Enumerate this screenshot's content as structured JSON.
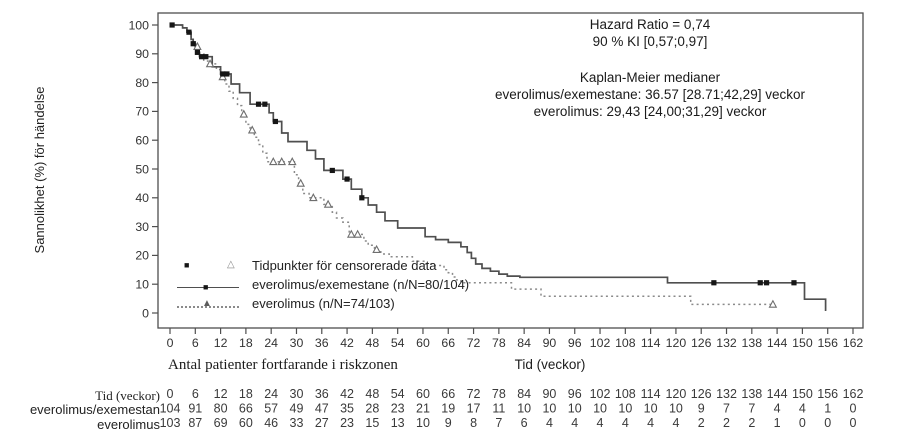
{
  "annotation": {
    "hazard_ratio": "Hazard Ratio = 0,74",
    "confidence_interval": "90 % KI [0,57;0,97]",
    "km_header": "Kaplan-Meier medianer",
    "km_median_combo": "everolimus/exemestane: 36.57 [28.71;42,29] veckor",
    "km_median_mono": "everolimus: 29,43 [24,00;31,29] veckor"
  },
  "axes": {
    "ylabel": "Sannolikhet (%) för händelse",
    "xlabel": "Tid (veckor)"
  },
  "legend": {
    "censored_label": "Tidpunkter för censorerade data",
    "series1_label": "everolimus/exemestane (n/N=80/104)",
    "series2_label": "everolimus (n/N=74/103)"
  },
  "risk_table": {
    "title": "Antal patienter fortfarande i riskzonen",
    "rows": [
      {
        "label": "Tid (veckor)",
        "values": [
          "0",
          "6",
          "12",
          "18",
          "24",
          "30",
          "36",
          "42",
          "48",
          "54",
          "60",
          "66",
          "72",
          "78",
          "84",
          "90",
          "96",
          "102",
          "108",
          "114",
          "120",
          "126",
          "132",
          "138",
          "144",
          "150",
          "156",
          "162"
        ]
      },
      {
        "label": "everolimus/exemestan",
        "values": [
          "104",
          "91",
          "80",
          "66",
          "57",
          "49",
          "47",
          "35",
          "28",
          "23",
          "21",
          "19",
          "17",
          "11",
          "10",
          "10",
          "10",
          "10",
          "10",
          "10",
          "10",
          "9",
          "7",
          "7",
          "4",
          "4",
          "1",
          "0"
        ]
      },
      {
        "label": "everolimus",
        "values": [
          "103",
          "87",
          "69",
          "60",
          "46",
          "33",
          "27",
          "23",
          "15",
          "13",
          "10",
          "9",
          "8",
          "7",
          "6",
          "4",
          "4",
          "4",
          "4",
          "4",
          "4",
          "2",
          "2",
          "2",
          "1",
          "0",
          "0",
          "0"
        ]
      }
    ]
  },
  "chart_data": {
    "type": "line",
    "subtype": "kaplan-meier-step",
    "title": "",
    "xlabel": "Tid (veckor)",
    "ylabel": "Sannolikhet (%) för händelse",
    "xlim": [
      0,
      162
    ],
    "ylim": [
      0,
      100
    ],
    "xticks": [
      0,
      6,
      12,
      18,
      24,
      30,
      36,
      42,
      48,
      54,
      60,
      66,
      72,
      78,
      84,
      90,
      96,
      102,
      108,
      114,
      120,
      126,
      132,
      138,
      144,
      150,
      156,
      162
    ],
    "yticks": [
      0,
      10,
      20,
      30,
      40,
      50,
      60,
      70,
      80,
      90,
      100
    ],
    "grid": false,
    "legend_position": "lower-left",
    "series": [
      {
        "name": "everolimus/exemestane (n/N=80/104)",
        "style": "solid",
        "marker": "filled-square",
        "median_weeks": 36.57,
        "steps": [
          [
            0,
            100
          ],
          [
            3,
            99
          ],
          [
            4,
            97.5
          ],
          [
            5,
            95
          ],
          [
            5.5,
            93.5
          ],
          [
            6,
            92
          ],
          [
            6.5,
            90.5
          ],
          [
            7,
            89
          ],
          [
            10,
            85.5
          ],
          [
            12,
            83
          ],
          [
            14.5,
            79.5
          ],
          [
            16.5,
            76.5
          ],
          [
            19,
            72.5
          ],
          [
            23.5,
            69.5
          ],
          [
            24.5,
            66.5
          ],
          [
            26.5,
            62.5
          ],
          [
            28,
            59.5
          ],
          [
            32.5,
            56.5
          ],
          [
            34.5,
            53.5
          ],
          [
            36.5,
            49.5
          ],
          [
            41,
            46.5
          ],
          [
            43,
            43
          ],
          [
            45.5,
            40
          ],
          [
            47,
            37.5
          ],
          [
            49,
            35
          ],
          [
            51,
            32
          ],
          [
            54,
            29.5
          ],
          [
            60.5,
            26.5
          ],
          [
            63,
            25.5
          ],
          [
            66,
            24.5
          ],
          [
            69,
            23
          ],
          [
            70.5,
            21
          ],
          [
            71.5,
            19
          ],
          [
            72.5,
            17
          ],
          [
            74,
            15.5
          ],
          [
            76,
            14.5
          ],
          [
            78,
            13.5
          ],
          [
            80,
            12.8
          ],
          [
            83,
            12.4
          ],
          [
            118,
            10.5
          ],
          [
            150.5,
            4.8
          ],
          [
            155.5,
            1
          ]
        ],
        "end_week": 155.7,
        "censor_marks": [
          [
            0.5,
            100
          ],
          [
            4.5,
            97.5
          ],
          [
            5.5,
            93.5
          ],
          [
            6.5,
            90.5
          ],
          [
            7.5,
            89
          ],
          [
            8.5,
            89
          ],
          [
            12.5,
            83
          ],
          [
            13.5,
            83
          ],
          [
            21,
            72.5
          ],
          [
            22.5,
            72.5
          ],
          [
            25,
            66.5
          ],
          [
            38.5,
            49.5
          ],
          [
            42,
            46.5
          ],
          [
            45.5,
            40
          ],
          [
            129,
            10.5
          ],
          [
            140,
            10.5
          ],
          [
            141.5,
            10.5
          ],
          [
            148,
            10.5
          ]
        ]
      },
      {
        "name": "everolimus (n/N=74/103)",
        "style": "dotted",
        "marker": "open-triangle",
        "median_weeks": 29.43,
        "steps": [
          [
            0,
            100
          ],
          [
            3,
            99
          ],
          [
            4,
            97
          ],
          [
            5,
            95
          ],
          [
            6,
            92.5
          ],
          [
            7,
            90
          ],
          [
            8,
            87.5
          ],
          [
            9,
            86.5
          ],
          [
            11,
            84.5
          ],
          [
            12,
            82
          ],
          [
            13,
            79.5
          ],
          [
            14,
            77
          ],
          [
            15,
            74.5
          ],
          [
            16,
            72
          ],
          [
            17,
            69
          ],
          [
            18,
            65.5
          ],
          [
            19,
            63.5
          ],
          [
            20,
            61
          ],
          [
            21,
            58.5
          ],
          [
            22,
            55.5
          ],
          [
            23,
            52.5
          ],
          [
            29.5,
            48
          ],
          [
            30.5,
            45
          ],
          [
            31.5,
            41.5
          ],
          [
            33,
            40
          ],
          [
            36.5,
            37.7
          ],
          [
            38.5,
            35
          ],
          [
            39.5,
            33
          ],
          [
            41,
            31.5
          ],
          [
            42.5,
            27.3
          ],
          [
            46,
            25
          ],
          [
            47,
            23.5
          ],
          [
            48.5,
            22
          ],
          [
            50,
            20.5
          ],
          [
            52,
            19.5
          ],
          [
            57.5,
            18
          ],
          [
            60.5,
            17
          ],
          [
            62,
            16.5
          ],
          [
            65,
            15
          ],
          [
            66,
            14
          ],
          [
            67,
            12.5
          ],
          [
            68,
            11.5
          ],
          [
            69,
            10.5
          ],
          [
            81,
            8.3
          ],
          [
            88,
            5.8
          ],
          [
            123.5,
            3
          ]
        ],
        "end_week": 143,
        "censor_marks": [
          [
            6.5,
            92.5
          ],
          [
            9.5,
            86.5
          ],
          [
            12.5,
            82
          ],
          [
            17.5,
            69
          ],
          [
            19.5,
            63.5
          ],
          [
            24.5,
            52.5
          ],
          [
            26.5,
            52.5
          ],
          [
            29,
            52.5
          ],
          [
            31,
            45
          ],
          [
            34,
            40
          ],
          [
            37.5,
            37.7
          ],
          [
            43,
            27.3
          ],
          [
            44.5,
            27.3
          ],
          [
            49,
            22
          ],
          [
            143,
            3
          ]
        ]
      }
    ]
  },
  "colors": {
    "line_solid": "#4f4f4f",
    "line_dotted": "#8a8a8a",
    "marker_square": "#161616",
    "marker_triangle": "#6e6e6e",
    "axis": "#4f4f4f",
    "text": "#1c1c1c"
  }
}
